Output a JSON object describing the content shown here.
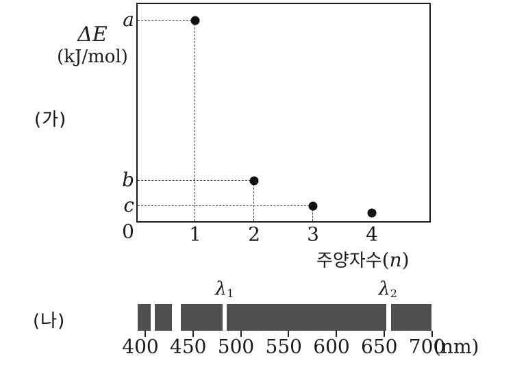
{
  "panel_a": {
    "label": "(가)",
    "y_axis": {
      "title_symbol": "ΔE",
      "title_unit": "(kJ/mol)",
      "origin_label": "0"
    },
    "x_axis": {
      "title_prefix": "주양자수",
      "title_open": "(",
      "title_var": "n",
      "title_close": ")"
    }
  },
  "panel_b": {
    "label": "(나)",
    "unit_suffix": "(nm)"
  },
  "chart_data": [
    {
      "type": "scatter",
      "xlabel": "주양자수(n)",
      "ylabel": "ΔE (kJ/mol)",
      "xlim": [
        0,
        5
      ],
      "ylim_rel": [
        0,
        1.08
      ],
      "grid": false,
      "legend": false,
      "x_tick_labels": [
        "1",
        "2",
        "3",
        "4"
      ],
      "points": [
        {
          "n": 1,
          "y_label": "a",
          "y_rel": 1.0
        },
        {
          "n": 2,
          "y_label": "b",
          "y_rel": 0.2
        },
        {
          "n": 3,
          "y_label": "c",
          "y_rel": 0.075
        },
        {
          "n": 4,
          "y_label": null,
          "y_rel": 0.04
        }
      ],
      "origin_label": "0",
      "guides": "dashed lines connect axes to points with labeled values"
    },
    {
      "type": "spectrum-band",
      "xlabel": "(nm)",
      "x_ticks": [
        400,
        450,
        500,
        550,
        600,
        650,
        700
      ],
      "x_tick_labels": [
        "400",
        "450",
        "500",
        "550",
        "600",
        "650",
        "700"
      ],
      "band_color": "#4f4f4f",
      "band_range_nm": [
        392,
        700
      ],
      "dark_segments_nm": [
        [
          392,
          406
        ],
        [
          410,
          428
        ],
        [
          437,
          481
        ],
        [
          485,
          652
        ],
        [
          657,
          700
        ]
      ],
      "bright_lines_nm": [
        {
          "nm": 408,
          "label_base": null,
          "label_sub": null
        },
        {
          "nm": 433,
          "label_base": null,
          "label_sub": null
        },
        {
          "nm": 483,
          "label_base": "λ",
          "label_sub": "1"
        },
        {
          "nm": 654,
          "label_base": "λ",
          "label_sub": "2"
        }
      ]
    }
  ]
}
